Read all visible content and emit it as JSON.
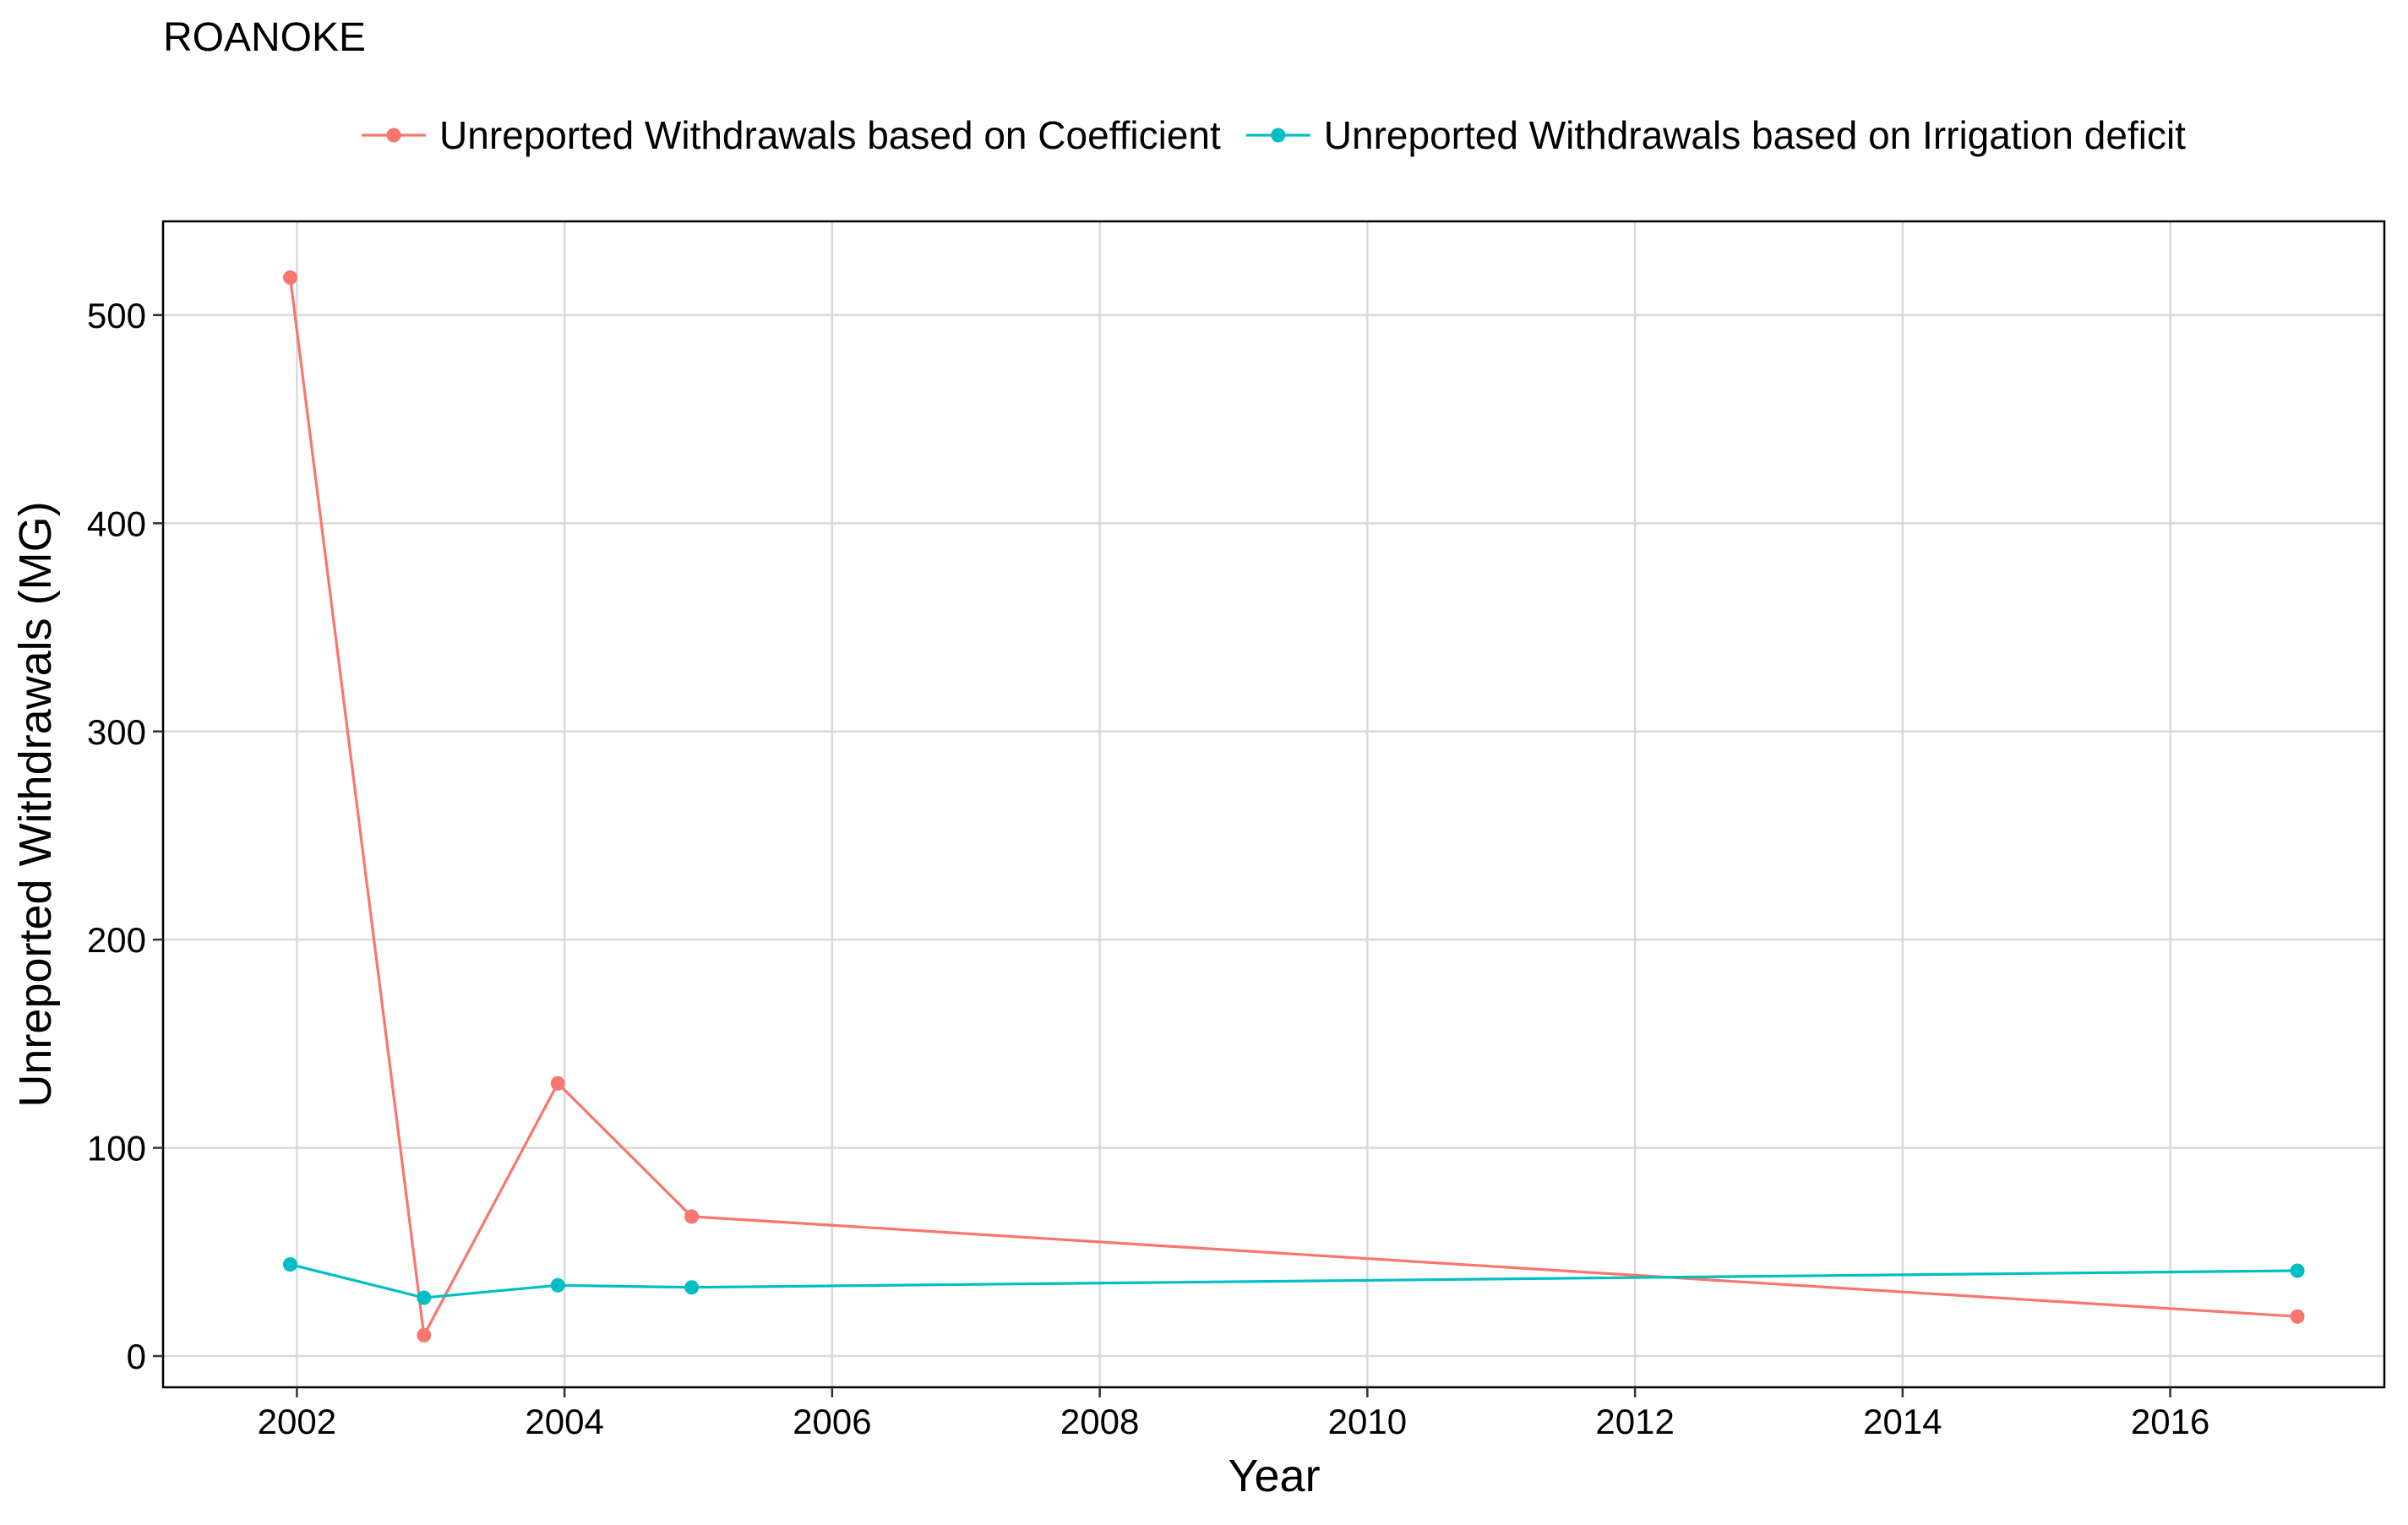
{
  "chart_data": {
    "type": "line",
    "title": "ROANOKE",
    "xlabel": "Year",
    "ylabel": "Unreported Withdrawals (MG)",
    "xlim": [
      2001.0,
      2017.6
    ],
    "ylim": [
      -15,
      545
    ],
    "x_ticks": [
      2002,
      2004,
      2006,
      2008,
      2010,
      2012,
      2014,
      2016
    ],
    "y_ticks": [
      0,
      100,
      200,
      300,
      400,
      500
    ],
    "grid": true,
    "legend_position": "top",
    "series": [
      {
        "name": "Unreported Withdrawals based on Coefficient",
        "color": "#F8766D",
        "x": [
          2001.95,
          2002.95,
          2003.95,
          2004.95,
          2016.95
        ],
        "y": [
          518,
          10,
          131,
          67,
          19
        ]
      },
      {
        "name": "Unreported Withdrawals based on Irrigation deficit",
        "color": "#00BFC4",
        "x": [
          2001.95,
          2002.95,
          2003.95,
          2004.95,
          2016.95
        ],
        "y": [
          44,
          28,
          34,
          33,
          41
        ]
      }
    ]
  }
}
